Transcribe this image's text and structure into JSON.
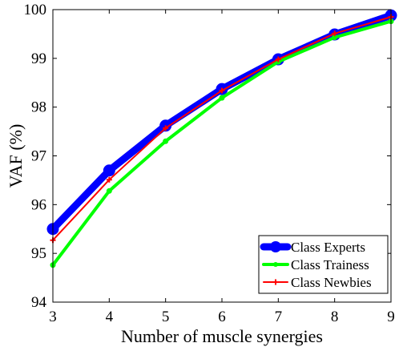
{
  "chart_data": {
    "type": "line",
    "title": "",
    "xlabel": "Number of muscle synergies",
    "ylabel": "VAF (%)",
    "x": [
      3,
      4,
      5,
      6,
      7,
      8,
      9
    ],
    "xlim": [
      3,
      9
    ],
    "ylim": [
      94,
      100
    ],
    "xticks": [
      "3",
      "4",
      "5",
      "6",
      "7",
      "8",
      "9"
    ],
    "yticks": [
      "94",
      "95",
      "96",
      "97",
      "98",
      "99",
      "100"
    ],
    "grid": false,
    "legend_position": "bottom-right",
    "series": [
      {
        "name": "Class Experts",
        "color": "#0000ff",
        "marker": "circle",
        "values": [
          95.5,
          96.7,
          97.62,
          98.37,
          98.98,
          99.49,
          99.88
        ]
      },
      {
        "name": "Class Trainess",
        "color": "#00ff00",
        "marker": "circle",
        "values": [
          94.76,
          96.28,
          97.3,
          98.19,
          98.93,
          99.43,
          99.76
        ]
      },
      {
        "name": "Class Newbies",
        "color": "#ff0000",
        "marker": "plus",
        "values": [
          95.27,
          96.51,
          97.57,
          98.34,
          98.98,
          99.51,
          99.85
        ]
      }
    ]
  }
}
